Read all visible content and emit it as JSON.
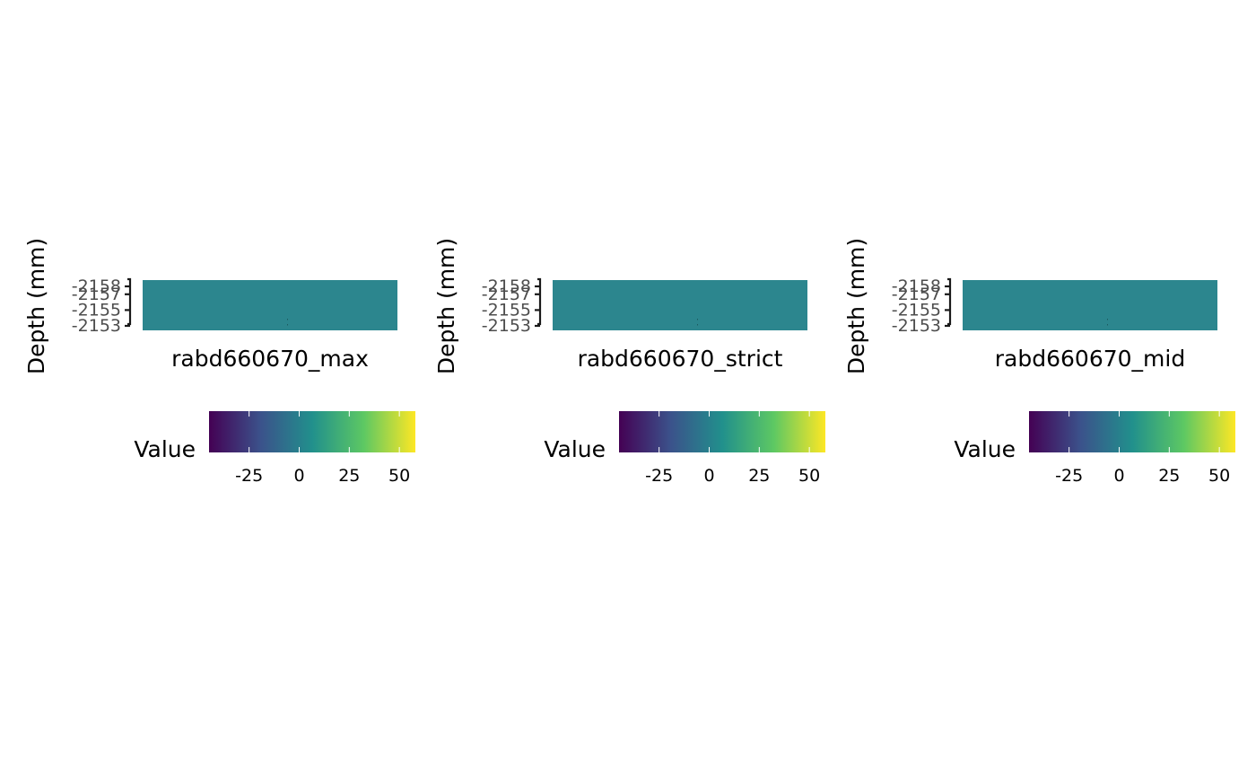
{
  "chart_data": [
    {
      "type": "heatmap",
      "title": "",
      "xlabel": "rabd660670_max",
      "ylabel": "Depth (mm)",
      "y_ticks": [
        "-2158",
        "-2157",
        "-2155",
        "-2153"
      ],
      "y_tick_values": [
        -2158,
        -2157,
        -2155,
        -2153
      ],
      "ylim": [
        -2153,
        -2158
      ],
      "cell_color": "#2C868E",
      "values": [
        [
          8
        ]
      ],
      "grid": false,
      "legend": {
        "title": "Value",
        "position": "bottom",
        "colormap": "viridis",
        "range": [
          -45,
          58
        ],
        "ticks": [
          "-25",
          "0",
          "25",
          "50"
        ],
        "tick_values": [
          -25,
          0,
          25,
          50
        ]
      }
    },
    {
      "type": "heatmap",
      "title": "",
      "xlabel": "rabd660670_strict",
      "ylabel": "Depth (mm)",
      "y_ticks": [
        "-2158",
        "-2157",
        "-2155",
        "-2153"
      ],
      "y_tick_values": [
        -2158,
        -2157,
        -2155,
        -2153
      ],
      "ylim": [
        -2153,
        -2158
      ],
      "cell_color": "#2C868E",
      "values": [
        [
          8
        ]
      ],
      "grid": false,
      "legend": {
        "title": "Value",
        "position": "bottom",
        "colormap": "viridis",
        "range": [
          -45,
          58
        ],
        "ticks": [
          "-25",
          "0",
          "25",
          "50"
        ],
        "tick_values": [
          -25,
          0,
          25,
          50
        ]
      }
    },
    {
      "type": "heatmap",
      "title": "",
      "xlabel": "rabd660670_mid",
      "ylabel": "Depth (mm)",
      "y_ticks": [
        "-2158",
        "-2157",
        "-2155",
        "-2153"
      ],
      "y_tick_values": [
        -2158,
        -2157,
        -2155,
        -2153
      ],
      "ylim": [
        -2153,
        -2158
      ],
      "cell_color": "#2C868E",
      "values": [
        [
          8
        ]
      ],
      "grid": false,
      "legend": {
        "title": "Value",
        "position": "bottom",
        "colormap": "viridis",
        "range": [
          -45,
          58
        ],
        "ticks": [
          "-25",
          "0",
          "25",
          "50"
        ],
        "tick_values": [
          -25,
          0,
          25,
          50
        ]
      }
    }
  ],
  "colors": {
    "viridis_stops": [
      "#440154",
      "#3B528B",
      "#21908C",
      "#5DC863",
      "#FDE725"
    ],
    "axis_line": "#1a1a1a",
    "tick_text": "#4d4d4d",
    "label_text": "#000000"
  }
}
